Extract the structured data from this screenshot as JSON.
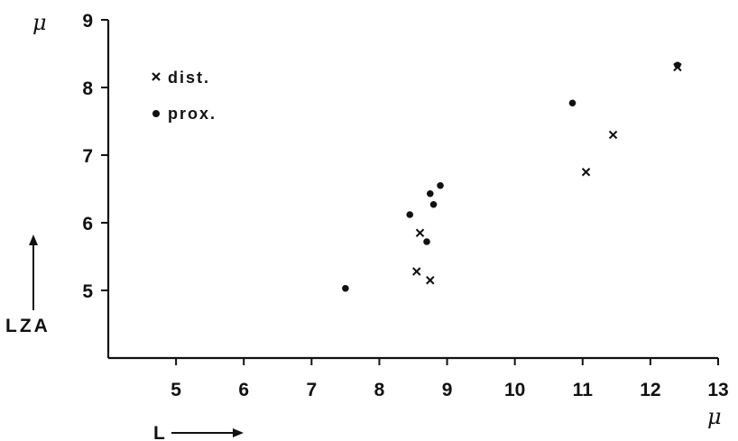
{
  "chart_data": {
    "type": "scatter",
    "title": "",
    "x_unit": "μ",
    "y_unit": "μ",
    "xlabel": "L",
    "ylabel": "LZA",
    "xlim": [
      4,
      13
    ],
    "ylim": [
      4,
      9
    ],
    "x_ticks": [
      5,
      6,
      7,
      8,
      9,
      10,
      11,
      12,
      13
    ],
    "y_ticks": [
      5,
      6,
      7,
      8,
      9
    ],
    "grid": false,
    "legend_position": "top-left",
    "legend": [
      {
        "label": "dist.",
        "marker": "x"
      },
      {
        "label": "prox.",
        "marker": "dot"
      }
    ],
    "series": [
      {
        "name": "dist.",
        "marker": "x",
        "points": [
          {
            "x": 8.6,
            "y": 5.85
          },
          {
            "x": 8.55,
            "y": 5.28
          },
          {
            "x": 8.75,
            "y": 5.15
          },
          {
            "x": 11.05,
            "y": 6.75
          },
          {
            "x": 11.45,
            "y": 7.3
          },
          {
            "x": 12.4,
            "y": 8.3
          }
        ]
      },
      {
        "name": "prox.",
        "marker": "dot",
        "points": [
          {
            "x": 7.5,
            "y": 5.03
          },
          {
            "x": 8.45,
            "y": 6.12
          },
          {
            "x": 8.7,
            "y": 5.72
          },
          {
            "x": 8.75,
            "y": 6.43
          },
          {
            "x": 8.8,
            "y": 6.27
          },
          {
            "x": 8.9,
            "y": 6.55
          },
          {
            "x": 10.85,
            "y": 7.77
          },
          {
            "x": 12.4,
            "y": 8.33
          }
        ]
      }
    ]
  }
}
